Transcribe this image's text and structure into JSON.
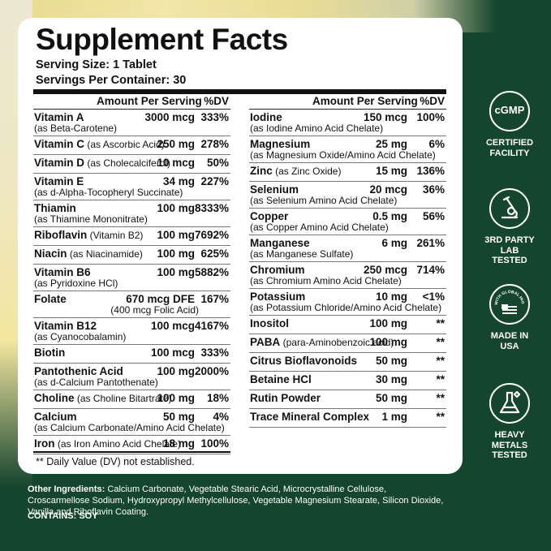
{
  "title": "Supplement Facts",
  "serving_size": "Serving Size: 1 Tablet",
  "servings_per_container": "Servings Per Container: 30",
  "header": {
    "amount": "Amount Per Serving",
    "dv": "%DV"
  },
  "left": [
    {
      "name": "Vitamin A",
      "src": "",
      "sub": "(as Beta-Carotene)",
      "amount": "3000 mcg",
      "dv": "333%"
    },
    {
      "name": "Vitamin C",
      "src": " (as Ascorbic Acid)",
      "sub": "",
      "amount": "250 mg",
      "dv": "278%"
    },
    {
      "name": "Vitamin D",
      "src": " (as Cholecalciferol)",
      "sub": "",
      "amount": "10 mcg",
      "dv": "50%"
    },
    {
      "name": "Vitamin E",
      "src": "",
      "sub": "(as d-Alpha-Tocopheryl Succinate)",
      "amount": "34 mg",
      "dv": "227%"
    },
    {
      "name": "Thiamin",
      "src": "",
      "sub": "(as Thiamine Mononitrate)",
      "amount": "100 mg",
      "dv": "8333%"
    },
    {
      "name": "Riboflavin",
      "src": " (Vitamin B2)",
      "sub": "",
      "amount": "100 mg",
      "dv": "7692%"
    },
    {
      "name": "Niacin",
      "src": " (as Niacinamide)",
      "sub": "",
      "amount": "100 mg",
      "dv": "625%"
    },
    {
      "name": "Vitamin B6",
      "src": "",
      "sub": "(as Pyridoxine HCl)",
      "amount": "100 mg",
      "dv": "5882%"
    },
    {
      "name": "Folate",
      "src": "",
      "sub": "",
      "amount": "670 mcg DFE",
      "amount2": "(400 mcg Folic Acid)",
      "dv": "167%"
    },
    {
      "name": "Vitamin B12",
      "src": "",
      "sub": "(as Cyanocobalamin)",
      "amount": "100 mcg",
      "dv": "4167%"
    },
    {
      "name": "Biotin",
      "src": "",
      "sub": "",
      "amount": "100 mcg",
      "dv": "333%"
    },
    {
      "name": "Pantothenic Acid",
      "src": "",
      "sub": "(as d-Calcium Pantothenate)",
      "amount": "100 mg",
      "dv": "2000%"
    },
    {
      "name": "Choline",
      "src": " (as Choline Bitartrate)",
      "sub": "",
      "amount": "100 mg",
      "dv": "18%"
    },
    {
      "name": "Calcium",
      "src": "",
      "sub": "(as Calcium Carbonate/Amino Acid Chelate)",
      "amount": "50 mg",
      "dv": "4%"
    },
    {
      "name": "Iron",
      "src": " (as Iron Amino Acid Chelate)",
      "sub": "",
      "amount": "18 mg",
      "dv": "100%"
    }
  ],
  "right": [
    {
      "name": "Iodine",
      "src": "",
      "sub": "(as Iodine Amino Acid Chelate)",
      "amount": "150 mcg",
      "dv": "100%"
    },
    {
      "name": "Magnesium",
      "src": "",
      "sub": "(as Magnesium Oxide/Amino Acid Chelate)",
      "amount": "25 mg",
      "dv": "6%"
    },
    {
      "name": "Zinc",
      "src": " (as Zinc Oxide)",
      "sub": "",
      "amount": "15 mg",
      "dv": "136%"
    },
    {
      "name": "Selenium",
      "src": "",
      "sub": "(as Selenium Amino Acid Chelate)",
      "amount": "20 mcg",
      "dv": "36%"
    },
    {
      "name": "Copper",
      "src": "",
      "sub": "(as Copper Amino Acid Chelate)",
      "amount": "0.5 mg",
      "dv": "56%"
    },
    {
      "name": "Manganese",
      "src": "",
      "sub": "(as Manganese Sulfate)",
      "amount": "6 mg",
      "dv": "261%"
    },
    {
      "name": "Chromium",
      "src": "",
      "sub": "(as Chromium Amino Acid Chelate)",
      "amount": "250 mcg",
      "dv": "714%"
    },
    {
      "name": "Potassium",
      "src": "",
      "sub": "(as Potassium Chloride/Amino Acid Chelate)",
      "amount": "10 mg",
      "dv": "<1%"
    },
    {
      "name": "Inositol",
      "src": "",
      "sub": "",
      "amount": "100 mg",
      "dv": "**"
    },
    {
      "name": "PABA",
      "src": " (para-Aminobenzoic acid)",
      "sub": "",
      "amount": "100 mg",
      "dv": "**"
    },
    {
      "name": "Citrus Bioflavonoids",
      "src": "",
      "sub": "",
      "amount": "50 mg",
      "dv": "**"
    },
    {
      "name": "Betaine HCl",
      "src": "",
      "sub": "",
      "amount": "30 mg",
      "dv": "**"
    },
    {
      "name": "Rutin Powder",
      "src": "",
      "sub": "",
      "amount": "50 mg",
      "dv": "**"
    },
    {
      "name": "Trace Mineral Complex",
      "src": "",
      "sub": "",
      "amount": "1 mg",
      "dv": "**"
    }
  ],
  "footnote": "** Daily Value (DV) not established.",
  "other_label": "Other Ingredients:",
  "other_text": " Calcium Carbonate, Vegetable Stearic Acid, Microcrystalline Cellulose, Croscarmellose Sodium, Hydroxypropyl Methylcellulose, Vegetable Magnesium Stearate, Silicon Dioxide, Vanilla and Riboflavin Coating.",
  "contains": "CONTAINS: SOY",
  "badges": [
    {
      "icon": "cgmp-icon",
      "glyph": "cGMP",
      "label": "CERTIFIED FACILITY"
    },
    {
      "icon": "microscope-icon",
      "glyph": "",
      "label": "3RD PARTY LAB TESTED"
    },
    {
      "icon": "usa-flag-icon",
      "glyph": "",
      "seal_text": "WITH GLOBAL INGREDIENTS",
      "label": "MADE IN USA"
    },
    {
      "icon": "flask-icon",
      "glyph": "",
      "label": "HEAVY METALS TESTED"
    }
  ],
  "colors": {
    "brand_green": "#16452e",
    "panel": "#ffffff",
    "text": "#111111"
  }
}
